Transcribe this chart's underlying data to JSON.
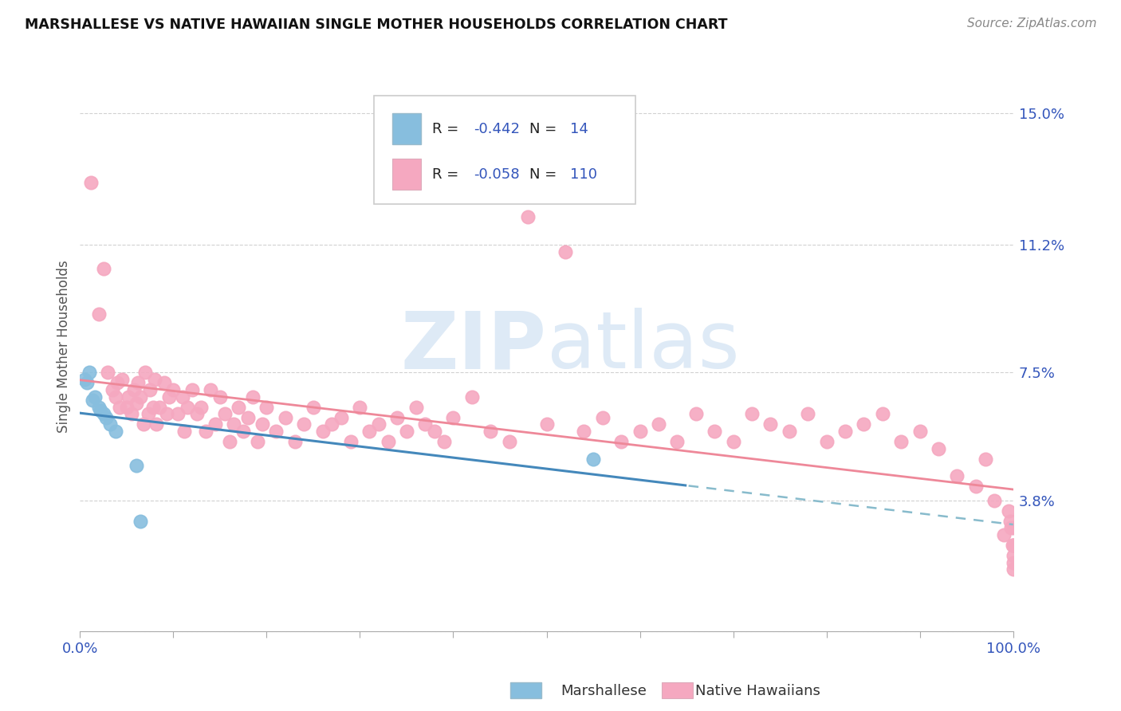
{
  "title": "MARSHALLESE VS NATIVE HAWAIIAN SINGLE MOTHER HOUSEHOLDS CORRELATION CHART",
  "source": "Source: ZipAtlas.com",
  "ylabel": "Single Mother Households",
  "xlim": [
    0.0,
    1.0
  ],
  "ylim": [
    0.0,
    0.165
  ],
  "yticks": [
    0.0,
    0.038,
    0.075,
    0.112,
    0.15
  ],
  "ytick_labels": [
    "",
    "3.8%",
    "7.5%",
    "11.2%",
    "15.0%"
  ],
  "color_marshallese": "#87BEDE",
  "color_native_hawaiian": "#F5A8C0",
  "color_blue": "#3355BB",
  "color_black": "#333333",
  "bg_color": "#FFFFFF",
  "grid_color": "#CCCCCC",
  "watermark_color": "#C8DCF0",
  "legend_r1_val": "-0.442",
  "legend_r1_n": "14",
  "legend_r2_val": "-0.058",
  "legend_r2_n": "110",
  "marshallese_x": [
    0.005,
    0.007,
    0.01,
    0.013,
    0.016,
    0.02,
    0.022,
    0.025,
    0.028,
    0.032,
    0.038,
    0.06,
    0.065,
    0.55
  ],
  "marshallese_y": [
    0.073,
    0.072,
    0.075,
    0.067,
    0.068,
    0.065,
    0.064,
    0.063,
    0.062,
    0.06,
    0.058,
    0.048,
    0.032,
    0.05
  ],
  "nh_x": [
    0.012,
    0.02,
    0.025,
    0.03,
    0.035,
    0.038,
    0.04,
    0.042,
    0.045,
    0.05,
    0.052,
    0.055,
    0.058,
    0.06,
    0.062,
    0.065,
    0.068,
    0.07,
    0.073,
    0.075,
    0.078,
    0.08,
    0.082,
    0.085,
    0.09,
    0.093,
    0.095,
    0.1,
    0.105,
    0.11,
    0.112,
    0.115,
    0.12,
    0.125,
    0.13,
    0.135,
    0.14,
    0.145,
    0.15,
    0.155,
    0.16,
    0.165,
    0.17,
    0.175,
    0.18,
    0.185,
    0.19,
    0.195,
    0.2,
    0.21,
    0.22,
    0.23,
    0.24,
    0.25,
    0.26,
    0.27,
    0.28,
    0.29,
    0.3,
    0.31,
    0.32,
    0.33,
    0.34,
    0.35,
    0.36,
    0.37,
    0.38,
    0.39,
    0.4,
    0.42,
    0.44,
    0.46,
    0.48,
    0.5,
    0.52,
    0.54,
    0.56,
    0.58,
    0.6,
    0.62,
    0.64,
    0.66,
    0.68,
    0.7,
    0.72,
    0.74,
    0.76,
    0.78,
    0.8,
    0.82,
    0.84,
    0.86,
    0.88,
    0.9,
    0.92,
    0.94,
    0.96,
    0.97,
    0.98,
    0.99,
    0.995,
    0.997,
    0.998,
    0.999,
    1.0,
    1.0,
    1.0,
    1.0,
    1.0,
    1.0
  ],
  "nh_y": [
    0.13,
    0.092,
    0.105,
    0.075,
    0.07,
    0.068,
    0.072,
    0.065,
    0.073,
    0.065,
    0.068,
    0.063,
    0.07,
    0.066,
    0.072,
    0.068,
    0.06,
    0.075,
    0.063,
    0.07,
    0.065,
    0.073,
    0.06,
    0.065,
    0.072,
    0.063,
    0.068,
    0.07,
    0.063,
    0.068,
    0.058,
    0.065,
    0.07,
    0.063,
    0.065,
    0.058,
    0.07,
    0.06,
    0.068,
    0.063,
    0.055,
    0.06,
    0.065,
    0.058,
    0.062,
    0.068,
    0.055,
    0.06,
    0.065,
    0.058,
    0.062,
    0.055,
    0.06,
    0.065,
    0.058,
    0.06,
    0.062,
    0.055,
    0.065,
    0.058,
    0.06,
    0.055,
    0.062,
    0.058,
    0.065,
    0.06,
    0.058,
    0.055,
    0.062,
    0.068,
    0.058,
    0.055,
    0.12,
    0.06,
    0.11,
    0.058,
    0.062,
    0.055,
    0.058,
    0.06,
    0.055,
    0.063,
    0.058,
    0.055,
    0.063,
    0.06,
    0.058,
    0.063,
    0.055,
    0.058,
    0.06,
    0.063,
    0.055,
    0.058,
    0.053,
    0.045,
    0.042,
    0.05,
    0.038,
    0.028,
    0.035,
    0.032,
    0.03,
    0.025,
    0.02,
    0.025,
    0.03,
    0.018,
    0.022,
    0.025
  ]
}
